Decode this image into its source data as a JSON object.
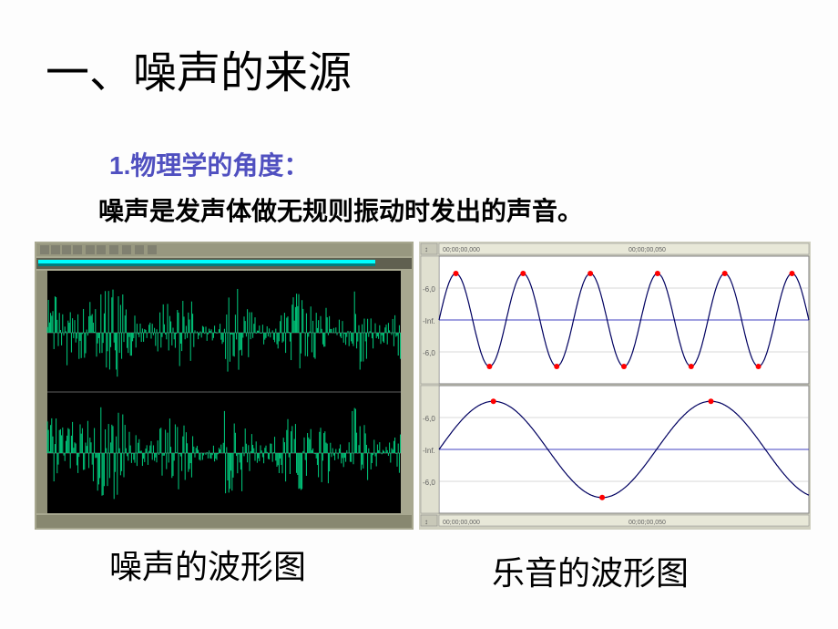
{
  "title": "一、噪声的来源",
  "subtitle_num": "1.",
  "subtitle_text": "物理学的角度：",
  "definition": "噪声是发声体做无规则振动时发出的声音。",
  "caption_left": "噪声的波形图",
  "caption_right": "乐音的波形图",
  "noise_chart": {
    "type": "waveform",
    "background_color": "#000000",
    "wave_color": "#00d080",
    "baseline_color": "#606060",
    "toolbar_bg": "#a0a090",
    "timeline_bg": "#707060",
    "channels": 2,
    "style": "irregular_noise"
  },
  "music_chart": {
    "type": "sine_waveform",
    "background_color": "#ffffff",
    "border_color": "#808080",
    "gridline_color": "#b0b0b0",
    "wave_color": "#000080",
    "baseline_color": "#4040c0",
    "marker_color": "#ff0000",
    "marker_size": 3,
    "ruler_bg": "#e8e8d8",
    "ruler_labels": [
      "00;00;00,000",
      "00;00;00,050"
    ],
    "y_labels": [
      "-6,0",
      "-Inf.",
      "-6,0"
    ],
    "y_label_color": "#606060",
    "channels": [
      {
        "cycles": 5.5,
        "amplitude": 0.85,
        "markers_per_cycle": 2
      },
      {
        "cycles": 1.7,
        "amplitude": 0.88,
        "markers_per_cycle": 2
      }
    ]
  }
}
